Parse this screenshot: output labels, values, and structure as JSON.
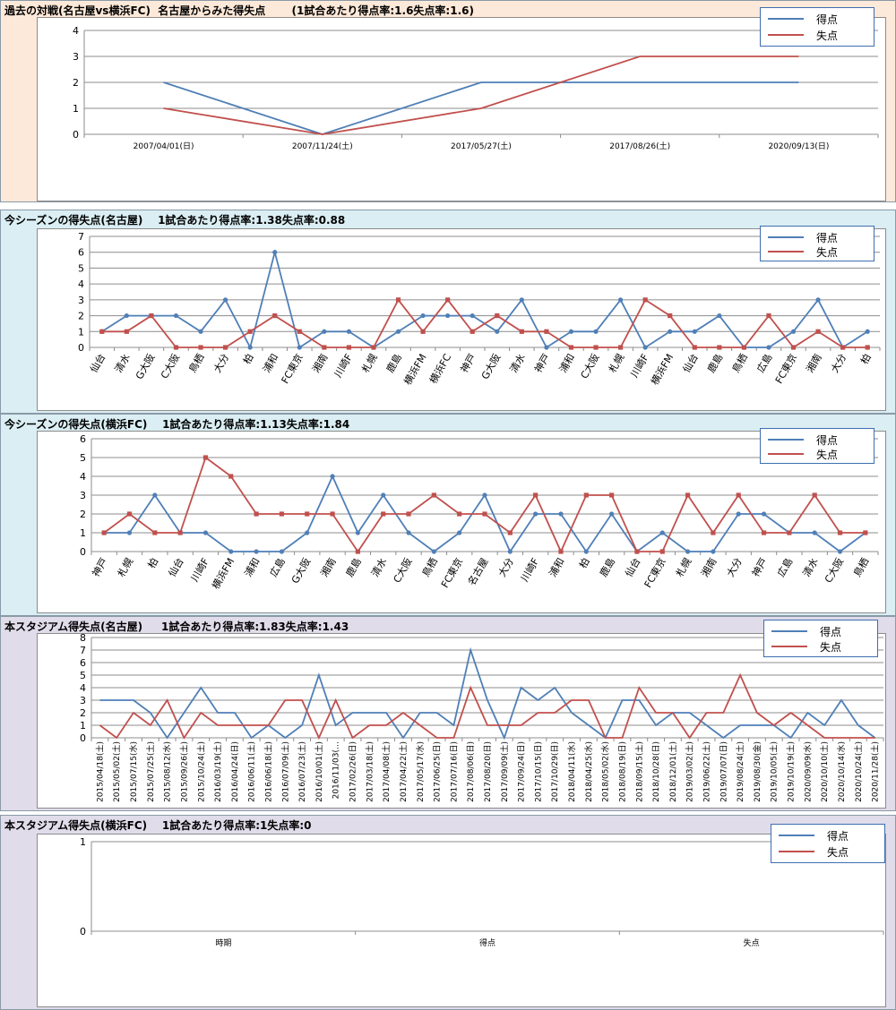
{
  "colors": {
    "score": "#4f7fb7",
    "concede": "#c0504d",
    "bg_orange": "#fde9d9",
    "bg_blue": "#daeef3",
    "bg_purple": "#e0dcea",
    "grid": "#8c8c8c"
  },
  "legend": {
    "score": "得点",
    "concede": "失点"
  },
  "chart_data": [
    {
      "type": "line",
      "title": "過去の対戦(名古屋vs横浜FC)  名古屋からみた得失点       (1試合あたり得点率:1.6失点率:1.6)",
      "categories": [
        "2007/04/01(日)",
        "2007/11/24(土)",
        "2017/05/27(土)",
        "2017/08/26(土)",
        "2020/09/13(日)"
      ],
      "ylim": [
        0,
        4
      ],
      "markers": false,
      "series": [
        {
          "name": "得点",
          "values": [
            2,
            0,
            2,
            2,
            2
          ]
        },
        {
          "name": "失点",
          "values": [
            1,
            0,
            1,
            3,
            3
          ]
        }
      ]
    },
    {
      "type": "line",
      "title": "今シーズンの得失点(名古屋)    1試合あたり得点率:1.38失点率:0.88",
      "categories": [
        "仙台",
        "清水",
        "G大阪",
        "C大阪",
        "鳥栖",
        "大分",
        "柏",
        "浦和",
        "FC東京",
        "湘南",
        "川崎F",
        "札幌",
        "鹿島",
        "横浜FM",
        "横浜FC",
        "神戸",
        "G大阪",
        "清水",
        "神戸",
        "浦和",
        "C大阪",
        "札幌",
        "川崎F",
        "横浜FM",
        "仙台",
        "鹿島",
        "鳥栖",
        "広島",
        "FC東京",
        "湘南",
        "大分",
        "柏"
      ],
      "ylim": [
        0,
        7
      ],
      "markers": true,
      "series": [
        {
          "name": "得点",
          "values": [
            1,
            2,
            2,
            2,
            1,
            3,
            0,
            6,
            0,
            1,
            1,
            0,
            1,
            2,
            2,
            2,
            1,
            3,
            0,
            1,
            1,
            3,
            0,
            1,
            1,
            2,
            0,
            0,
            1,
            3,
            0,
            1
          ]
        },
        {
          "name": "失点",
          "values": [
            1,
            1,
            2,
            0,
            0,
            0,
            1,
            2,
            1,
            0,
            0,
            0,
            3,
            1,
            3,
            1,
            2,
            1,
            1,
            0,
            0,
            0,
            3,
            2,
            0,
            0,
            0,
            2,
            0,
            1,
            0,
            0
          ]
        }
      ]
    },
    {
      "type": "line",
      "title": "今シーズンの得失点(横浜FC)    1試合あたり得点率:1.13失点率:1.84",
      "categories": [
        "神戸",
        "札幌",
        "柏",
        "仙台",
        "川崎F",
        "横浜FM",
        "浦和",
        "広島",
        "G大阪",
        "湘南",
        "鹿島",
        "清水",
        "C大阪",
        "鳥栖",
        "FC東京",
        "名古屋",
        "大分",
        "川崎F",
        "浦和",
        "柏",
        "鹿島",
        "仙台",
        "FC東京",
        "札幌",
        "湘南",
        "大分",
        "神戸",
        "広島",
        "清水",
        "C大阪",
        "鳥栖"
      ],
      "ylim": [
        0,
        6
      ],
      "markers": true,
      "series": [
        {
          "name": "得点",
          "values": [
            1,
            1,
            3,
            1,
            1,
            0,
            0,
            0,
            1,
            4,
            1,
            3,
            1,
            0,
            1,
            3,
            0,
            2,
            2,
            0,
            2,
            0,
            1,
            0,
            0,
            2,
            2,
            1,
            1,
            0,
            1
          ]
        },
        {
          "name": "失点",
          "values": [
            1,
            2,
            1,
            1,
            5,
            4,
            2,
            2,
            2,
            2,
            0,
            2,
            2,
            3,
            2,
            2,
            1,
            3,
            0,
            3,
            3,
            0,
            0,
            3,
            1,
            3,
            1,
            1,
            3,
            1,
            1
          ]
        }
      ]
    },
    {
      "type": "line",
      "title": "本スタジアム得失点(名古屋)     1試合あたり得点率:1.83失点率:1.43",
      "categories": [
        "2015/04/18(土)",
        "2015/05/02(土)",
        "2015/07/15(水)",
        "2015/07/25(土)",
        "2015/08/12(水)",
        "2015/09/26(土)",
        "2015/10/24(土)",
        "2016/03/19(土)",
        "2016/04/24(日)",
        "2016/06/11(土)",
        "2016/06/18(土)",
        "2016/07/09(土)",
        "2016/07/23(土)",
        "2016/10/01(土)",
        "2016/11/03(…",
        "2017/02/26(日)",
        "2017/03/18(土)",
        "2017/04/08(土)",
        "2017/04/22(土)",
        "2017/05/17(水)",
        "2017/06/25(日)",
        "2017/07/16(日)",
        "2017/08/06(日)",
        "2017/08/20(日)",
        "2017/09/09(土)",
        "2017/09/24(日)",
        "2017/10/15(日)",
        "2017/10/29(日)",
        "2018/04/11(水)",
        "2018/04/25(水)",
        "2018/05/02(水)",
        "2018/08/19(日)",
        "2018/09/15(土)",
        "2018/10/28(日)",
        "2018/12/01(土)",
        "2019/03/02(土)",
        "2019/06/22(土)",
        "2019/07/07(日)",
        "2019/08/24(土)",
        "2019/08/30(金)",
        "2019/10/05(土)",
        "2019/10/19(土)",
        "2020/09/09(水)",
        "2020/10/10(土)",
        "2020/10/14(水)",
        "2020/10/24(土)",
        "2020/11/28(土)"
      ],
      "ylim": [
        0,
        8
      ],
      "markers": false,
      "series": [
        {
          "name": "得点",
          "values": [
            3,
            3,
            3,
            2,
            0,
            2,
            4,
            2,
            2,
            0,
            1,
            0,
            1,
            5,
            1,
            2,
            2,
            2,
            0,
            2,
            2,
            1,
            7,
            3,
            0,
            4,
            3,
            4,
            2,
            1,
            0,
            3,
            3,
            1,
            2,
            2,
            1,
            0,
            1,
            1,
            1,
            0,
            2,
            1,
            3,
            1,
            0
          ]
        },
        {
          "name": "失点",
          "values": [
            1,
            0,
            2,
            1,
            3,
            0,
            2,
            1,
            1,
            1,
            1,
            3,
            3,
            0,
            3,
            0,
            1,
            1,
            2,
            1,
            0,
            0,
            4,
            1,
            1,
            1,
            2,
            2,
            3,
            3,
            0,
            0,
            4,
            2,
            2,
            0,
            2,
            2,
            5,
            2,
            1,
            2,
            1,
            0,
            0,
            0,
            0
          ]
        }
      ]
    },
    {
      "type": "line",
      "title": "本スタジアム得失点(横浜FC)    1試合あたり得点率:1失点率:0",
      "categories": [
        "時期",
        "得点",
        "失点"
      ],
      "ylim": [
        0,
        1
      ],
      "markers": false,
      "series": []
    }
  ]
}
